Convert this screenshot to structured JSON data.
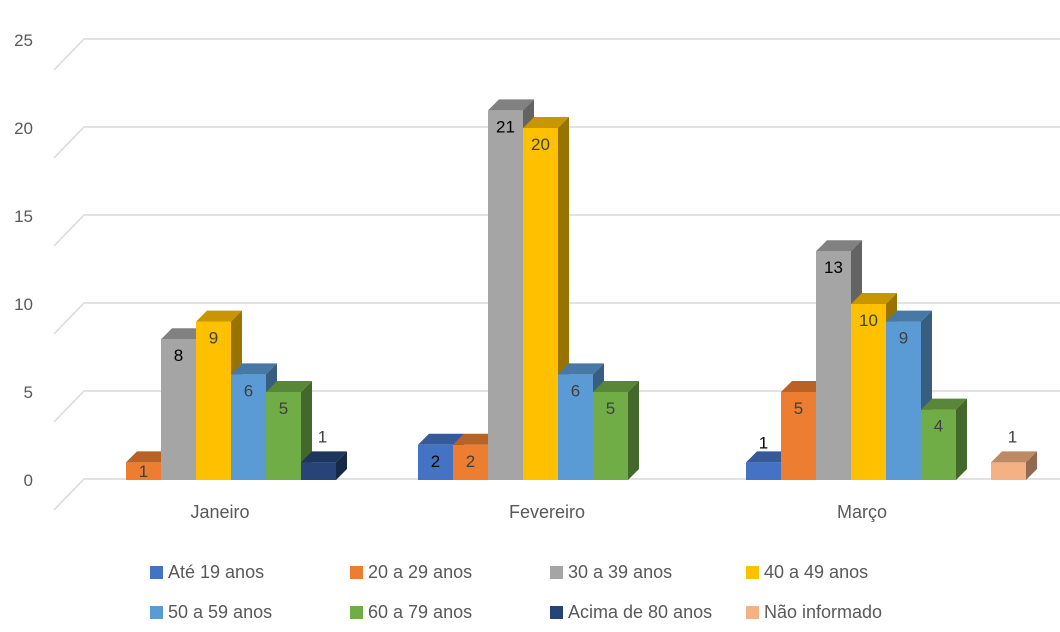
{
  "chart_data": {
    "type": "bar",
    "categories": [
      "Janeiro",
      "Fevereiro",
      "Março"
    ],
    "ylim": [
      0,
      25
    ],
    "yticks": [
      "0",
      "5",
      "10",
      "15",
      "20",
      "25"
    ],
    "grid": true,
    "legend_position": "bottom",
    "series": [
      {
        "name": "Até 19 anos",
        "color": "#4472C4",
        "values": [
          null,
          2,
          1
        ]
      },
      {
        "name": "20 a 29 anos",
        "color": "#ED7D31",
        "values": [
          1,
          2,
          5
        ]
      },
      {
        "name": "30 a 39 anos",
        "color": "#A5A5A5",
        "values": [
          8,
          21,
          13
        ]
      },
      {
        "name": "40 a 49 anos",
        "color": "#FFC000",
        "values": [
          9,
          20,
          10
        ]
      },
      {
        "name": "50 a 59 anos",
        "color": "#5B9BD5",
        "values": [
          6,
          6,
          9
        ]
      },
      {
        "name": "60 a 79 anos",
        "color": "#70AD47",
        "values": [
          5,
          5,
          4
        ]
      },
      {
        "name": "Acima de 80 anos",
        "color": "#264478",
        "values": [
          1,
          null,
          null
        ]
      },
      {
        "name": "Não informado",
        "color": "#F4B183",
        "values": [
          null,
          null,
          1
        ]
      }
    ]
  }
}
